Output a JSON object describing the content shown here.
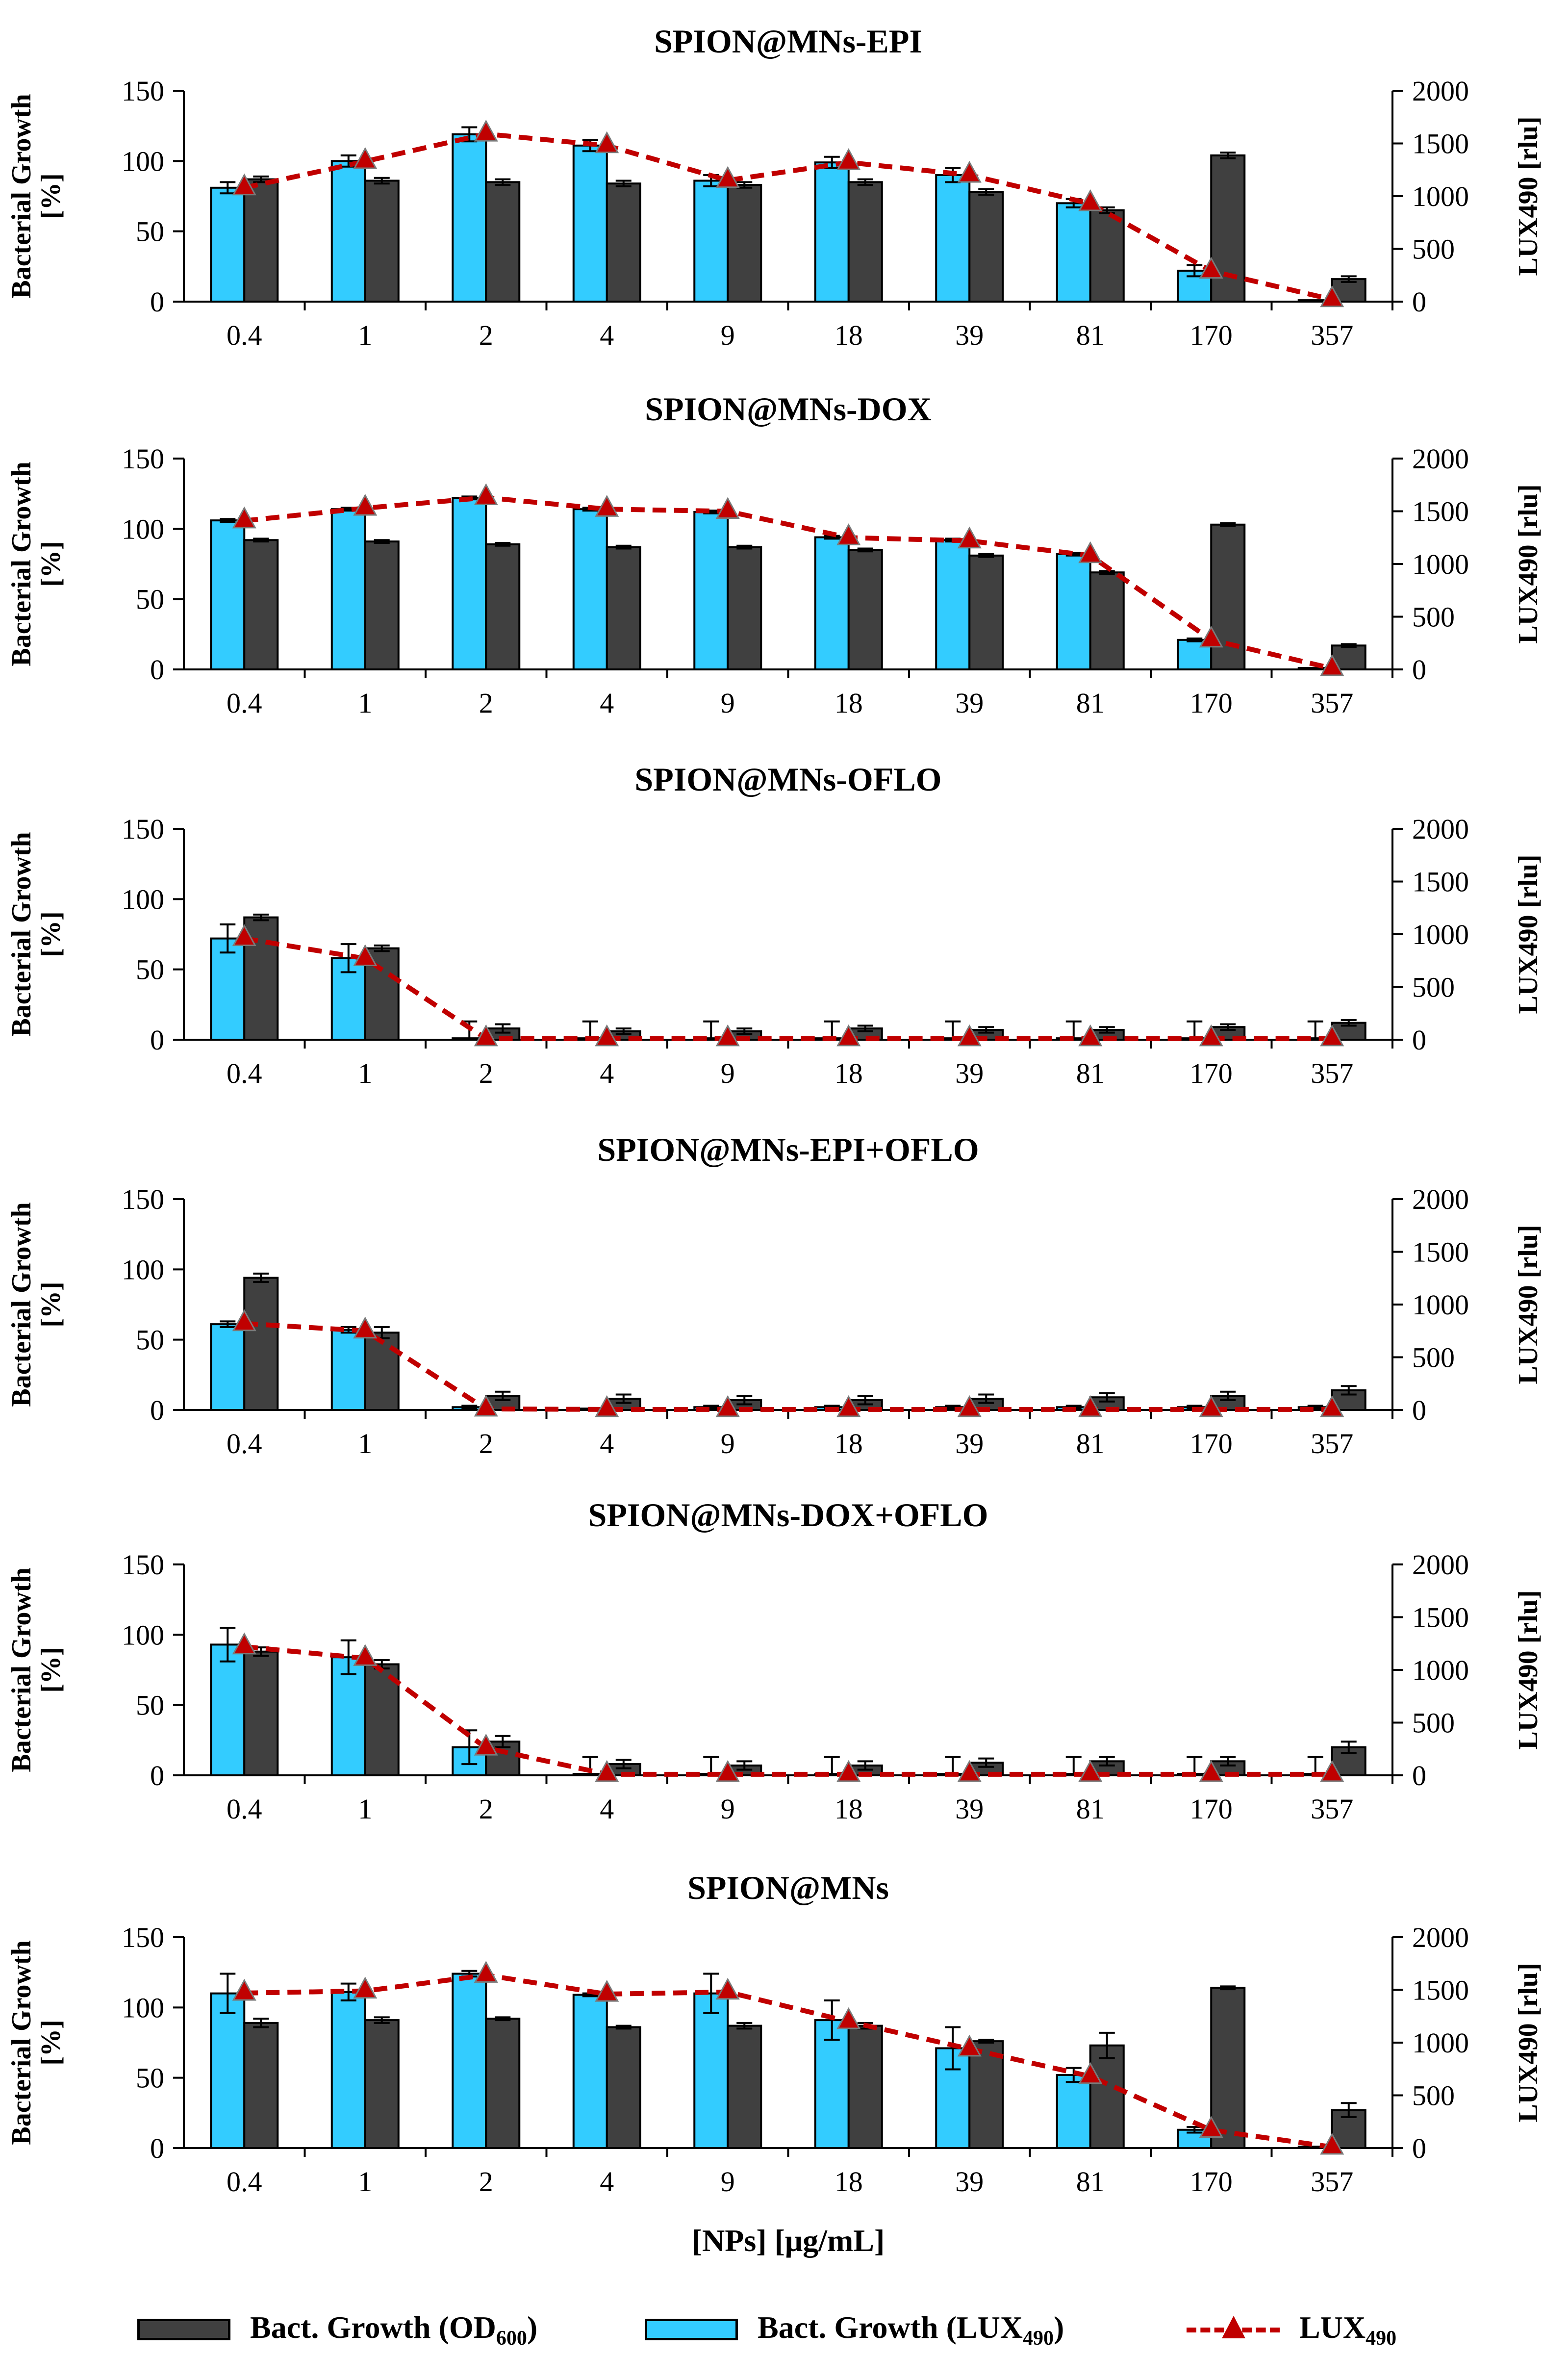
{
  "colors": {
    "od": "#404040",
    "lux_bar": "#33ccff",
    "lux_line": "#c00000"
  },
  "x_axis_label": "[NPs] [μg/mL]",
  "legend": {
    "od_label": "Bact. Growth (OD",
    "od_sub": "600",
    "od_close": ")",
    "lux_bar_label": "Bact. Growth (LUX",
    "lux_bar_sub": "490",
    "lux_bar_close": ")",
    "lux_line_label": "LUX",
    "lux_line_sub": "490"
  },
  "chart_data": [
    {
      "type": "bar",
      "title": "SPION@MNs-EPI",
      "categories": [
        "0.4",
        "1",
        "2",
        "4",
        "9",
        "18",
        "39",
        "81",
        "170",
        "357"
      ],
      "ylabel": "Bacterial Growth [%]",
      "ylim": [
        0,
        150
      ],
      "yticks": [
        0,
        50,
        100,
        150
      ],
      "y2label": "LUX490 [rlu]",
      "y2lim": [
        0,
        2000
      ],
      "y2ticks": [
        0,
        500,
        1000,
        1500,
        2000
      ],
      "series": [
        {
          "name": "Bact. Growth (LUX490)",
          "values": [
            81,
            100,
            119,
            111,
            86,
            99,
            90,
            70,
            22,
            1
          ],
          "errors": [
            4,
            4,
            5,
            4,
            4,
            4,
            5,
            3,
            4,
            0
          ]
        },
        {
          "name": "Bact. Growth (OD600)",
          "values": [
            87,
            86,
            85,
            84,
            83,
            85,
            78,
            65,
            104,
            16
          ],
          "errors": [
            2,
            2,
            2,
            2,
            2,
            2,
            2,
            2,
            2,
            2
          ]
        },
        {
          "name": "LUX490",
          "axis": "right",
          "values": [
            1080,
            1330,
            1590,
            1480,
            1150,
            1320,
            1200,
            930,
            290,
            20
          ]
        }
      ]
    },
    {
      "type": "bar",
      "title": "SPION@MNs-DOX",
      "categories": [
        "0.4",
        "1",
        "2",
        "4",
        "9",
        "18",
        "39",
        "81",
        "170",
        "357"
      ],
      "ylabel": "Bacterial Growth [%]",
      "ylim": [
        0,
        150
      ],
      "yticks": [
        0,
        50,
        100,
        150
      ],
      "y2label": "LUX490 [rlu]",
      "y2lim": [
        0,
        2000
      ],
      "y2ticks": [
        0,
        500,
        1000,
        1500,
        2000
      ],
      "series": [
        {
          "name": "Bact. Growth (LUX490)",
          "values": [
            106,
            114,
            122,
            114,
            112,
            94,
            92,
            82,
            21,
            1
          ],
          "errors": [
            1,
            1,
            1,
            1,
            1,
            1,
            1,
            1,
            1,
            0
          ]
        },
        {
          "name": "Bact. Growth (OD600)",
          "values": [
            92,
            91,
            89,
            87,
            87,
            85,
            81,
            69,
            103,
            17
          ],
          "errors": [
            1,
            1,
            1,
            1,
            1,
            1,
            1,
            1,
            1,
            1
          ]
        },
        {
          "name": "LUX490",
          "axis": "right",
          "values": [
            1410,
            1530,
            1630,
            1520,
            1500,
            1250,
            1220,
            1080,
            280,
            10
          ]
        }
      ]
    },
    {
      "type": "bar",
      "title": "SPION@MNs-OFLO",
      "categories": [
        "0.4",
        "1",
        "2",
        "4",
        "9",
        "18",
        "39",
        "81",
        "170",
        "357"
      ],
      "ylabel": "Bacterial Growth [%]",
      "ylim": [
        0,
        150
      ],
      "yticks": [
        0,
        50,
        100,
        150
      ],
      "y2label": "LUX490 [rlu]",
      "y2lim": [
        0,
        2000
      ],
      "y2ticks": [
        0,
        500,
        1000,
        1500,
        2000
      ],
      "series": [
        {
          "name": "Bact. Growth (LUX490)",
          "values": [
            72,
            58,
            1,
            1,
            1,
            1,
            1,
            1,
            1,
            1
          ],
          "errors": [
            10,
            10,
            12,
            12,
            12,
            12,
            12,
            12,
            12,
            12
          ]
        },
        {
          "name": "Bact. Growth (OD600)",
          "values": [
            87,
            65,
            8,
            6,
            6,
            8,
            7,
            7,
            9,
            12
          ],
          "errors": [
            2,
            2,
            3,
            2,
            2,
            2,
            2,
            2,
            2,
            2
          ]
        },
        {
          "name": "LUX490",
          "axis": "right",
          "values": [
            960,
            770,
            10,
            10,
            10,
            10,
            10,
            10,
            10,
            10
          ]
        }
      ]
    },
    {
      "type": "bar",
      "title": "SPION@MNs-EPI+OFLO",
      "categories": [
        "0.4",
        "1",
        "2",
        "4",
        "9",
        "18",
        "39",
        "81",
        "170",
        "357"
      ],
      "ylabel": "Bacterial Growth [%]",
      "ylim": [
        0,
        150
      ],
      "yticks": [
        0,
        50,
        100,
        150
      ],
      "y2label": "LUX490 [rlu]",
      "y2lim": [
        0,
        2000
      ],
      "y2ticks": [
        0,
        500,
        1000,
        1500,
        2000
      ],
      "series": [
        {
          "name": "Bact. Growth (LUX490)",
          "values": [
            61,
            57,
            2,
            1,
            2,
            2,
            2,
            2,
            2,
            2
          ],
          "errors": [
            2,
            2,
            1,
            0,
            1,
            1,
            1,
            1,
            1,
            1
          ]
        },
        {
          "name": "Bact. Growth (OD600)",
          "values": [
            94,
            55,
            10,
            8,
            7,
            7,
            8,
            9,
            10,
            14
          ],
          "errors": [
            3,
            4,
            3,
            3,
            3,
            3,
            3,
            3,
            3,
            3
          ]
        },
        {
          "name": "LUX490",
          "axis": "right",
          "values": [
            820,
            750,
            10,
            5,
            5,
            5,
            5,
            5,
            5,
            5
          ]
        }
      ]
    },
    {
      "type": "bar",
      "title": "SPION@MNs-DOX+OFLO",
      "categories": [
        "0.4",
        "1",
        "2",
        "4",
        "9",
        "18",
        "39",
        "81",
        "170",
        "357"
      ],
      "ylabel": "Bacterial Growth [%]",
      "ylim": [
        0,
        150
      ],
      "yticks": [
        0,
        50,
        100,
        150
      ],
      "y2label": "LUX490 [rlu]",
      "y2lim": [
        0,
        2000
      ],
      "y2ticks": [
        0,
        500,
        1000,
        1500,
        2000
      ],
      "series": [
        {
          "name": "Bact. Growth (LUX490)",
          "values": [
            93,
            84,
            20,
            1,
            1,
            1,
            1,
            1,
            1,
            1
          ],
          "errors": [
            12,
            12,
            12,
            12,
            12,
            12,
            12,
            12,
            12,
            12
          ]
        },
        {
          "name": "Bact. Growth (OD600)",
          "values": [
            88,
            79,
            24,
            8,
            7,
            7,
            9,
            10,
            10,
            20
          ],
          "errors": [
            3,
            3,
            4,
            3,
            3,
            3,
            3,
            3,
            3,
            4
          ]
        },
        {
          "name": "LUX490",
          "axis": "right",
          "values": [
            1220,
            1110,
            260,
            10,
            10,
            10,
            10,
            10,
            10,
            10
          ]
        }
      ]
    },
    {
      "type": "bar",
      "title": "SPION@MNs",
      "categories": [
        "0.4",
        "1",
        "2",
        "4",
        "9",
        "18",
        "39",
        "81",
        "170",
        "357"
      ],
      "ylabel": "Bacterial Growth [%]",
      "ylim": [
        0,
        150
      ],
      "yticks": [
        0,
        50,
        100,
        150
      ],
      "y2label": "LUX490 [rlu]",
      "y2lim": [
        0,
        2000
      ],
      "y2ticks": [
        0,
        500,
        1000,
        1500,
        2000
      ],
      "series": [
        {
          "name": "Bact. Growth (LUX490)",
          "values": [
            110,
            111,
            124,
            109,
            110,
            91,
            71,
            52,
            13,
            1
          ],
          "errors": [
            14,
            6,
            2,
            1,
            14,
            14,
            15,
            5,
            2,
            0
          ]
        },
        {
          "name": "Bact. Growth (OD600)",
          "values": [
            89,
            91,
            92,
            86,
            87,
            87,
            76,
            73,
            114,
            27
          ],
          "errors": [
            3,
            2,
            1,
            1,
            2,
            2,
            1,
            9,
            1,
            5
          ]
        },
        {
          "name": "LUX490",
          "axis": "right",
          "values": [
            1470,
            1490,
            1640,
            1460,
            1480,
            1200,
            940,
            680,
            170,
            10
          ]
        }
      ]
    }
  ]
}
